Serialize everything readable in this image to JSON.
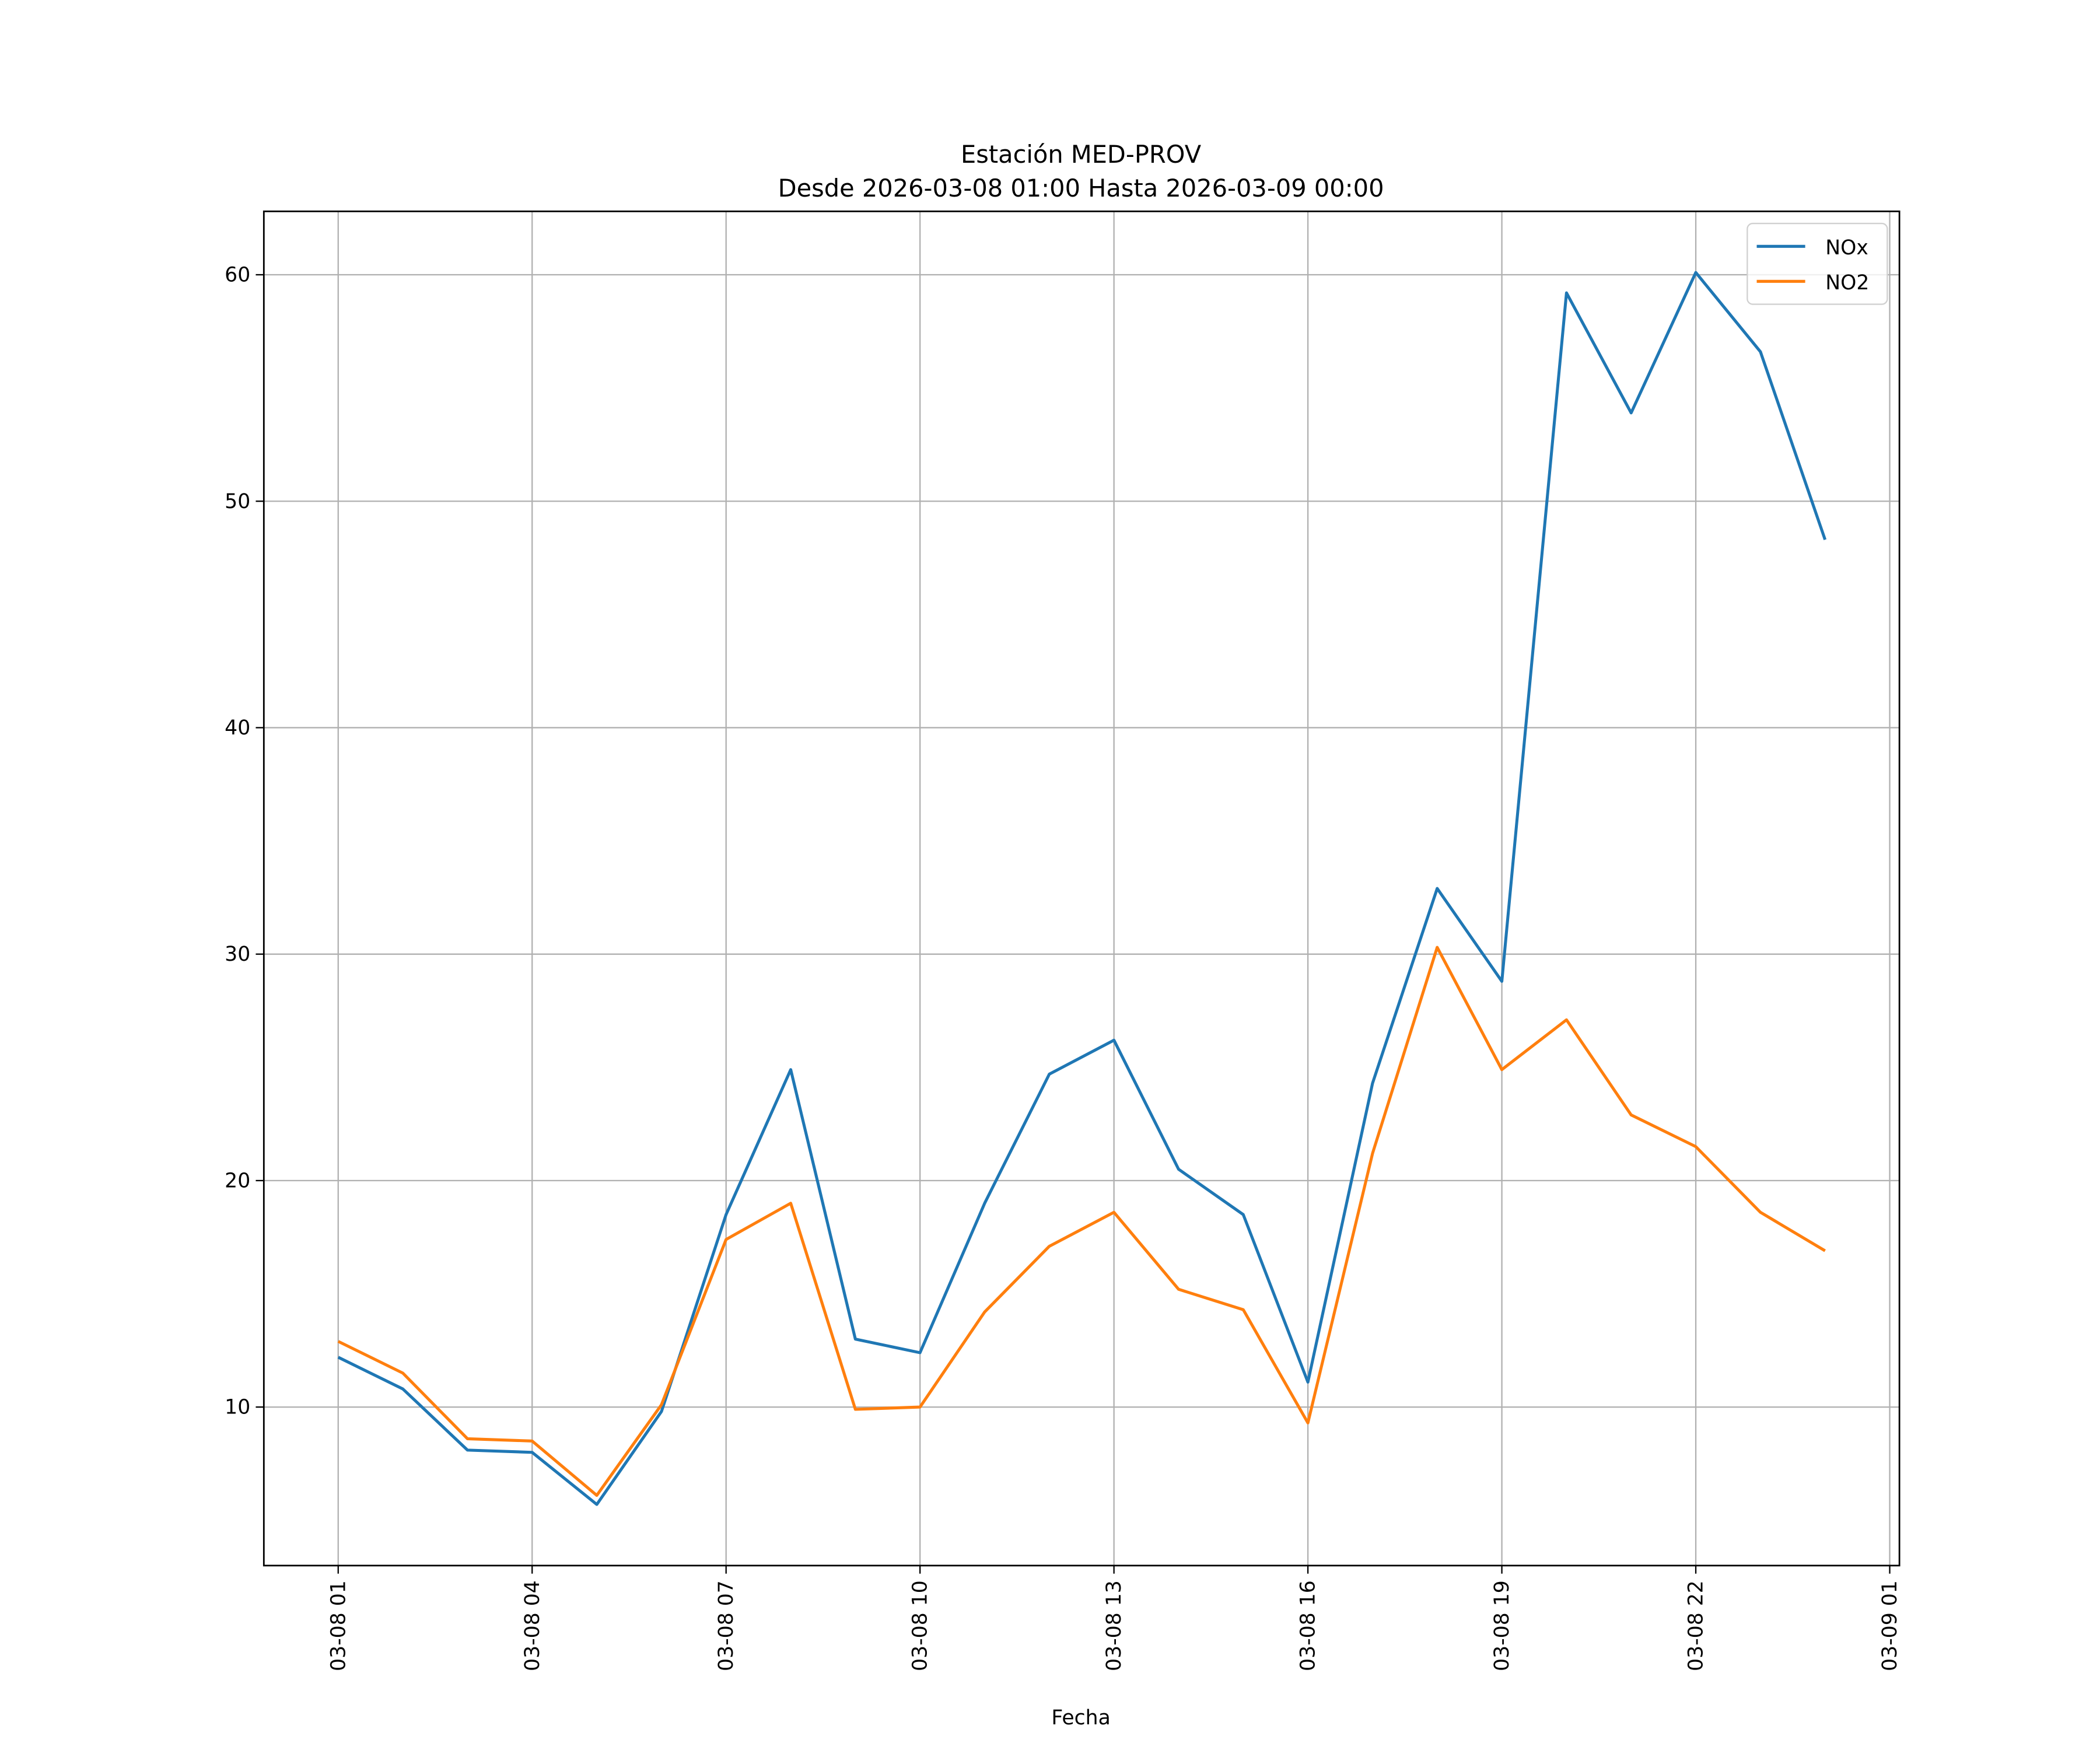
{
  "chart_data": {
    "type": "line",
    "title": "Estación MED-PROV",
    "subtitle": "Desde 2026-03-08 01:00 Hasta 2026-03-09 00:00",
    "xlabel": "Fecha",
    "ylabel": "",
    "x": [
      "2026-03-08 01:00",
      "2026-03-08 02:00",
      "2026-03-08 03:00",
      "2026-03-08 04:00",
      "2026-03-08 05:00",
      "2026-03-08 06:00",
      "2026-03-08 07:00",
      "2026-03-08 08:00",
      "2026-03-08 09:00",
      "2026-03-08 10:00",
      "2026-03-08 11:00",
      "2026-03-08 12:00",
      "2026-03-08 13:00",
      "2026-03-08 14:00",
      "2026-03-08 15:00",
      "2026-03-08 16:00",
      "2026-03-08 17:00",
      "2026-03-08 18:00",
      "2026-03-08 19:00",
      "2026-03-08 20:00",
      "2026-03-08 21:00",
      "2026-03-08 22:00",
      "2026-03-08 23:00",
      "2026-03-09 00:00"
    ],
    "series": [
      {
        "name": "NOx",
        "color": "#1f77b4",
        "values": [
          12.2,
          10.8,
          8.1,
          8.0,
          5.7,
          9.8,
          18.5,
          24.9,
          13.0,
          12.4,
          19.0,
          24.7,
          26.2,
          20.5,
          18.5,
          11.1,
          24.3,
          32.9,
          28.8,
          59.2,
          53.9,
          60.1,
          56.6,
          48.3
        ]
      },
      {
        "name": "NO2",
        "color": "#ff7f0e",
        "values": [
          12.9,
          11.5,
          8.6,
          8.5,
          6.1,
          10.1,
          17.4,
          19.0,
          9.9,
          10.0,
          14.2,
          17.1,
          18.6,
          15.2,
          14.3,
          9.3,
          21.2,
          30.3,
          24.9,
          27.1,
          22.9,
          21.5,
          18.6,
          16.9
        ]
      }
    ],
    "xlim": [
      "2026-03-07 23:51",
      "2026-03-09 01:09"
    ],
    "ylim": [
      3.0,
      62.8
    ],
    "xticks": [
      {
        "label": "03-08 01",
        "at": "2026-03-08 01:00"
      },
      {
        "label": "03-08 04",
        "at": "2026-03-08 04:00"
      },
      {
        "label": "03-08 07",
        "at": "2026-03-08 07:00"
      },
      {
        "label": "03-08 10",
        "at": "2026-03-08 10:00"
      },
      {
        "label": "03-08 13",
        "at": "2026-03-08 13:00"
      },
      {
        "label": "03-08 16",
        "at": "2026-03-08 16:00"
      },
      {
        "label": "03-08 19",
        "at": "2026-03-08 19:00"
      },
      {
        "label": "03-08 22",
        "at": "2026-03-08 22:00"
      },
      {
        "label": "03-09 01",
        "at": "2026-03-09 01:00"
      }
    ],
    "yticks": [
      10,
      20,
      30,
      40,
      50,
      60
    ],
    "grid": true,
    "legend": "top-right"
  }
}
